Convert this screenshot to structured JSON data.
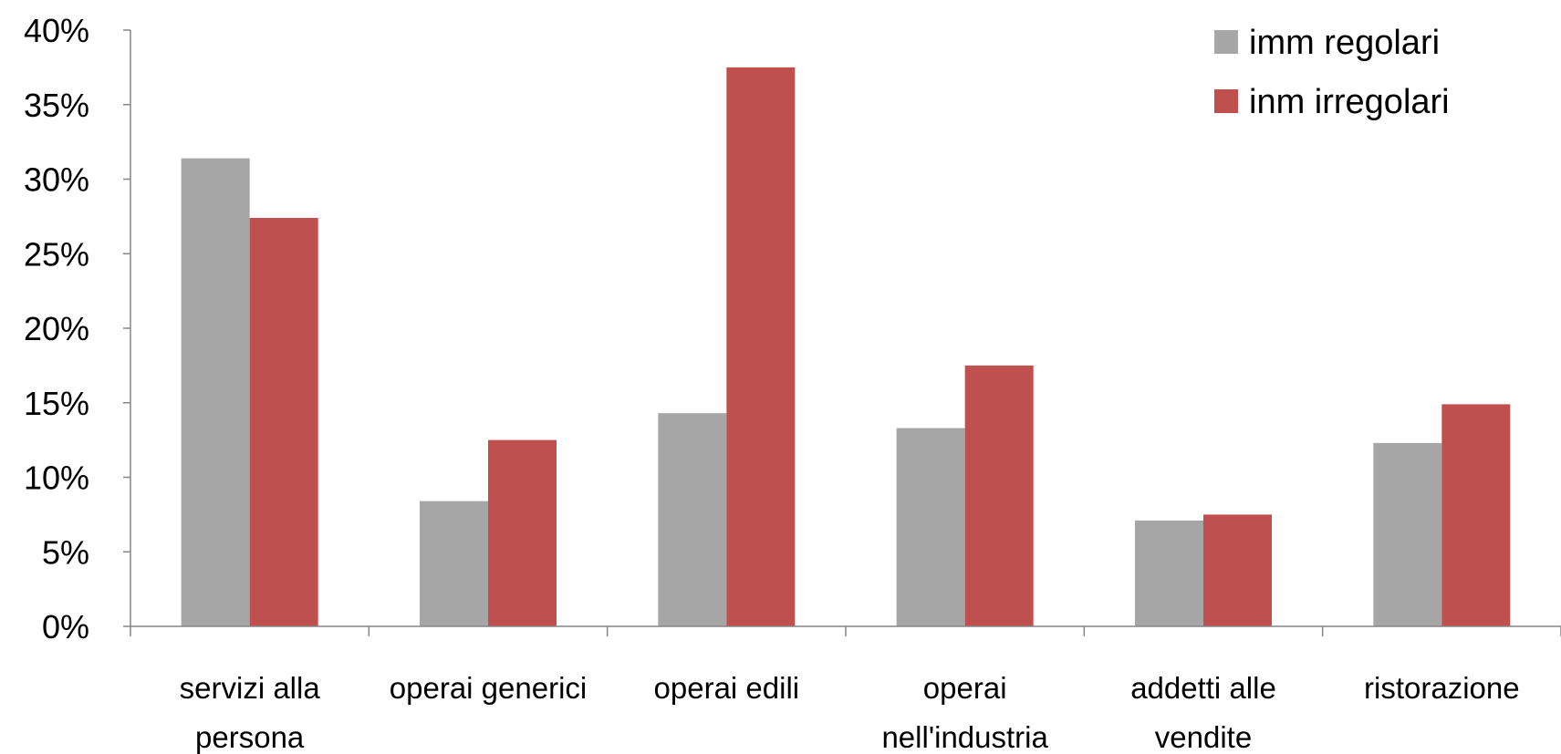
{
  "chart_data": {
    "type": "bar",
    "categories": [
      [
        "servizi alla",
        "persona"
      ],
      [
        "operai generici"
      ],
      [
        "operai edili"
      ],
      [
        "operai",
        "nell'industria"
      ],
      [
        "addetti alle",
        "vendite"
      ],
      [
        "ristorazione"
      ]
    ],
    "series": [
      {
        "name": "imm regolari",
        "color": "#a6a6a6",
        "values": [
          31.4,
          8.4,
          14.3,
          13.3,
          7.1,
          12.3
        ]
      },
      {
        "name": "inm irregolari",
        "color": "#c0504d",
        "values": [
          27.4,
          12.5,
          37.5,
          17.5,
          7.5,
          14.9
        ]
      }
    ],
    "yticks": [
      "0%",
      "5%",
      "10%",
      "15%",
      "20%",
      "25%",
      "30%",
      "35%",
      "40%"
    ],
    "ylim": [
      0,
      40
    ],
    "grid": false,
    "legend_position": "top-right",
    "axis_color": "#868686"
  }
}
